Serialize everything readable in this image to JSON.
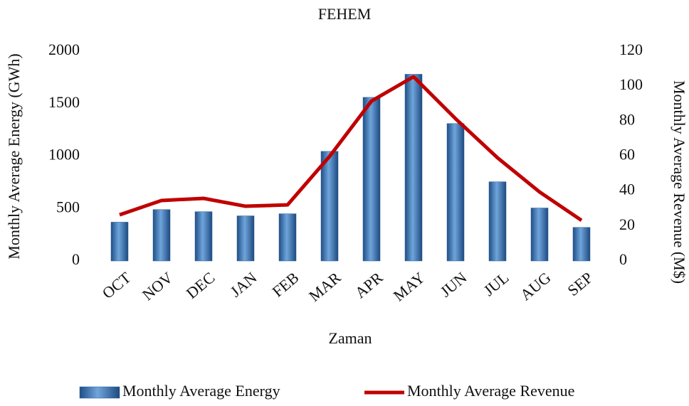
{
  "chart_data": {
    "type": "bar",
    "title": "FEHEM",
    "x_label": "Zaman",
    "y_label": "Monthly Average Energy (GWh)",
    "y2_label": "Monthly Average Revenue (M$)",
    "categories": [
      "OCT",
      "NOV",
      "DEC",
      "JAN",
      "FEB",
      "MAR",
      "APR",
      "MAY",
      "JUN",
      "JUL",
      "AUG",
      "SEP"
    ],
    "series": [
      {
        "name": "Monthly Average Energy",
        "type": "bar",
        "color": "#3f7fc0",
        "values": [
          370,
          490,
          470,
          430,
          450,
          1045,
          1560,
          1780,
          1310,
          755,
          505,
          320
        ]
      },
      {
        "name": "Monthly Average Revenue",
        "type": "line",
        "axis": "y2",
        "color": "#c00000",
        "values": [
          26.4,
          34.6,
          35.8,
          31.3,
          32.1,
          59.8,
          91.5,
          105.4,
          81.4,
          59,
          39.5,
          23.2
        ]
      }
    ],
    "ylim": [
      0,
      2000
    ],
    "yticks": [
      0,
      500,
      1000,
      1500,
      2000
    ],
    "y2lim": [
      0,
      120
    ],
    "y2ticks": [
      0,
      20,
      40,
      60,
      80,
      100,
      120
    ],
    "legend": "bottom"
  }
}
